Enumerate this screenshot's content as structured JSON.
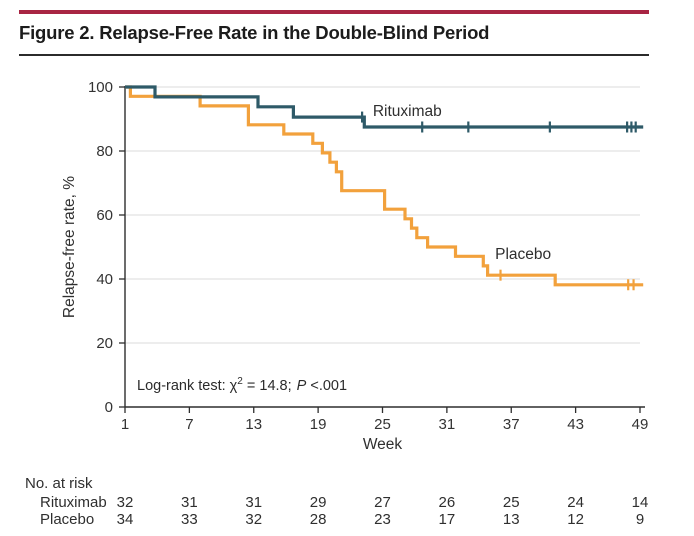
{
  "header": {
    "title": "Figure 2. Relapse-Free Rate in the Double-Blind Period"
  },
  "theme": {
    "accent_bar": "#A82543",
    "axis": "#2e2e2e",
    "grid": "#e2e2e2",
    "text": "#2f2f2f"
  },
  "chart_data": {
    "type": "line",
    "subtype": "kaplan-meier-step",
    "title": "Figure 2. Relapse-Free Rate in the Double-Blind Period",
    "xlabel": "Week",
    "ylabel": "Relapse-free rate, %",
    "xlim": [
      1,
      49
    ],
    "ylim": [
      0,
      100
    ],
    "xticks": [
      1,
      7,
      13,
      19,
      25,
      31,
      37,
      43,
      49
    ],
    "yticks": [
      0,
      20,
      40,
      60,
      80,
      100
    ],
    "grid": "horizontal",
    "legend_position": "inline-labels",
    "annotation": {
      "prefix": "Log-rank test: χ",
      "sup": "2",
      "mid": " = 14.8; ",
      "p_label": "P",
      "tail": " <.001"
    },
    "series": [
      {
        "name": "Rituximab",
        "color": "#2E5A68",
        "label_pos": {
          "week": 24.1,
          "pct": 90.9
        },
        "steps": [
          [
            1,
            100
          ],
          [
            3.8,
            100
          ],
          [
            3.8,
            96.9
          ],
          [
            13.4,
            96.9
          ],
          [
            13.4,
            93.8
          ],
          [
            16.7,
            93.8
          ],
          [
            16.7,
            90.6
          ],
          [
            23.3,
            90.6
          ],
          [
            23.3,
            87.5
          ],
          [
            49.3,
            87.5
          ]
        ],
        "censors": [
          [
            23.1,
            90.6
          ],
          [
            28.7,
            87.5
          ],
          [
            33.0,
            87.5
          ],
          [
            40.6,
            87.5
          ],
          [
            47.8,
            87.5
          ],
          [
            48.2,
            87.5
          ],
          [
            48.6,
            87.5
          ]
        ]
      },
      {
        "name": "Placebo",
        "color": "#F2A13C",
        "label_pos": {
          "week": 35.5,
          "pct": 46.2
        },
        "steps": [
          [
            1,
            100
          ],
          [
            1.5,
            100
          ],
          [
            1.5,
            97.1
          ],
          [
            8,
            97.1
          ],
          [
            8,
            94.1
          ],
          [
            12.5,
            94.1
          ],
          [
            12.5,
            88.2
          ],
          [
            15.8,
            88.2
          ],
          [
            15.8,
            85.3
          ],
          [
            18.5,
            85.3
          ],
          [
            18.5,
            82.4
          ],
          [
            19.4,
            82.4
          ],
          [
            19.4,
            79.4
          ],
          [
            20.1,
            79.4
          ],
          [
            20.1,
            76.5
          ],
          [
            20.7,
            76.5
          ],
          [
            20.7,
            73.5
          ],
          [
            21.2,
            73.5
          ],
          [
            21.2,
            67.6
          ],
          [
            25.2,
            67.6
          ],
          [
            25.2,
            61.8
          ],
          [
            27.1,
            61.8
          ],
          [
            27.1,
            58.8
          ],
          [
            27.7,
            58.8
          ],
          [
            27.7,
            55.9
          ],
          [
            28.2,
            55.9
          ],
          [
            28.2,
            52.9
          ],
          [
            29.2,
            52.9
          ],
          [
            29.2,
            50
          ],
          [
            31.8,
            50
          ],
          [
            31.8,
            47.1
          ],
          [
            34.4,
            47.1
          ],
          [
            34.4,
            44.1
          ],
          [
            34.8,
            44.1
          ],
          [
            34.8,
            41.2
          ],
          [
            41.1,
            41.2
          ],
          [
            41.1,
            38.2
          ],
          [
            49.3,
            38.2
          ]
        ],
        "censors": [
          [
            36,
            41.2
          ],
          [
            47.9,
            38.2
          ],
          [
            48.4,
            38.2
          ]
        ]
      }
    ],
    "risk_table": {
      "title": "No. at risk",
      "weeks": [
        1,
        7,
        13,
        19,
        25,
        31,
        37,
        43,
        49
      ],
      "rows": [
        {
          "name": "Rituximab",
          "values": [
            32,
            31,
            31,
            29,
            27,
            26,
            25,
            24,
            14
          ]
        },
        {
          "name": "Placebo",
          "values": [
            34,
            33,
            32,
            28,
            23,
            17,
            13,
            12,
            9
          ]
        }
      ]
    }
  }
}
